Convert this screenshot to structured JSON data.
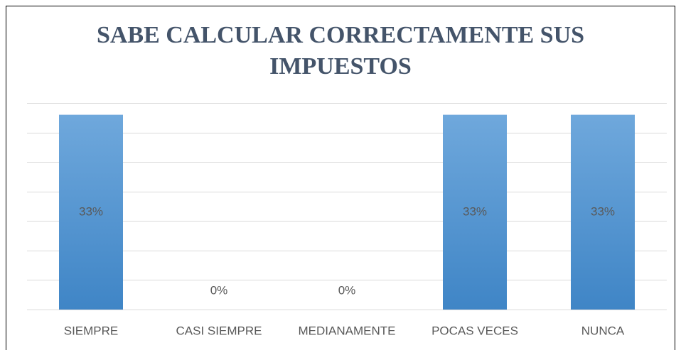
{
  "chart_data": {
    "type": "bar",
    "title": "SABE CALCULAR CORRECTAMENTE SUS IMPUESTOS",
    "categories": [
      "SIEMPRE",
      "CASI SIEMPRE",
      "MEDIANAMENTE",
      "POCAS VECES",
      "NUNCA"
    ],
    "values": [
      33,
      0,
      0,
      33,
      33
    ],
    "value_labels": [
      "33%",
      "0%",
      "0%",
      "33%",
      "33%"
    ],
    "color": "#5b9bd5",
    "ylim": [
      0,
      35
    ],
    "yticks": [
      0,
      5,
      10,
      15,
      20,
      25,
      30,
      35
    ],
    "grid": true
  }
}
